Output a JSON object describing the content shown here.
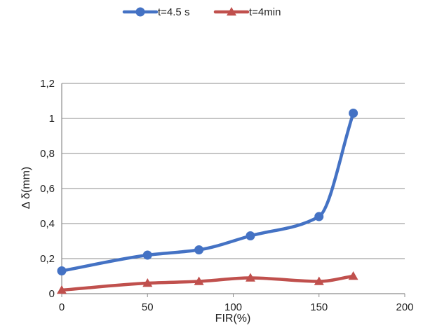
{
  "chart_data": {
    "type": "line",
    "x_values": [
      0,
      50,
      80,
      110,
      150,
      170
    ],
    "series": [
      {
        "name": "t=4.5 s",
        "color": "#4472C4",
        "marker": "circle",
        "x": [
          0,
          50,
          80,
          110,
          150,
          170
        ],
        "y": [
          0.13,
          0.22,
          0.25,
          0.33,
          0.44,
          1.03
        ]
      },
      {
        "name": "t=4min",
        "color": "#C0504D",
        "marker": "triangle",
        "x": [
          0,
          50,
          80,
          110,
          150,
          170
        ],
        "y": [
          0.02,
          0.06,
          0.07,
          0.09,
          0.07,
          0.1
        ]
      }
    ],
    "xlabel": "FIR(%)",
    "ylabel": "Δ δ(mm)",
    "xlim": [
      0,
      200
    ],
    "ylim": [
      0,
      1.2
    ],
    "x_ticks": [
      "0",
      "50",
      "100",
      "150",
      "200"
    ],
    "y_ticks": [
      "0",
      "0,2",
      "0,4",
      "0,6",
      "0,8",
      "1",
      "1,2"
    ],
    "grid": "horizontal",
    "legend_position": "top",
    "smooth_lines": true
  }
}
